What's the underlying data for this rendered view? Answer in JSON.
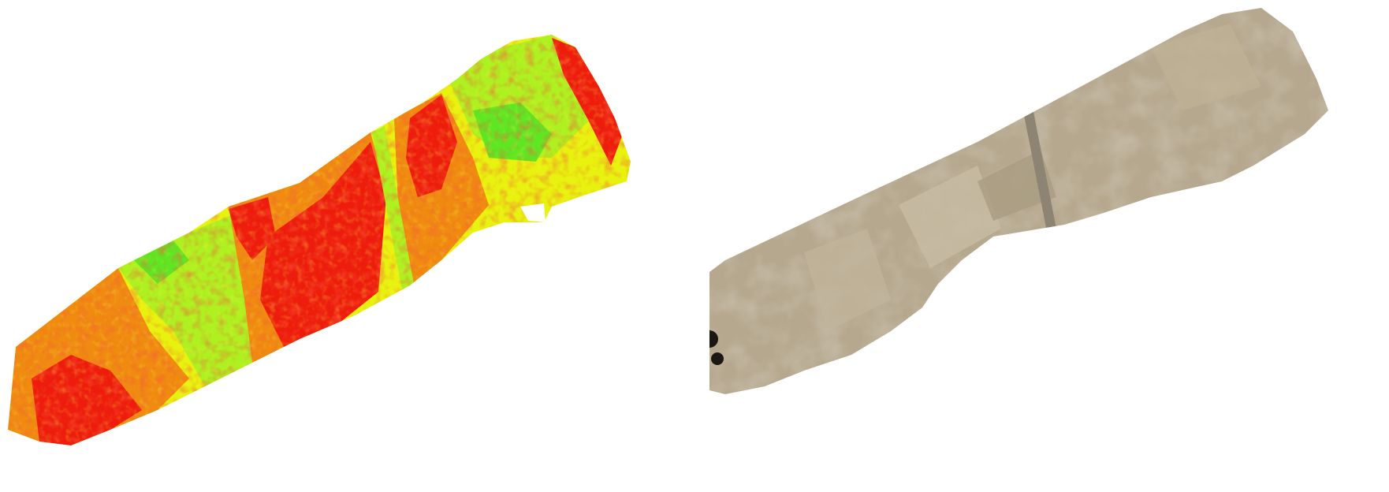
{
  "figure": {
    "panels": [
      {
        "id": "left",
        "kind": "vegetation-index-map",
        "colors": {
          "red": "#ee1c0c",
          "orange": "#f08a10",
          "yellow": "#e8f20e",
          "lime": "#aef020",
          "green": "#5fe623"
        }
      },
      {
        "id": "right",
        "kind": "rgb-orthomosaic",
        "colors": {
          "base": "#b6a88e",
          "light": "#c8bca4",
          "dark": "#9f9278",
          "road": "#8d8474",
          "shadow": "#1b1712"
        }
      }
    ]
  }
}
